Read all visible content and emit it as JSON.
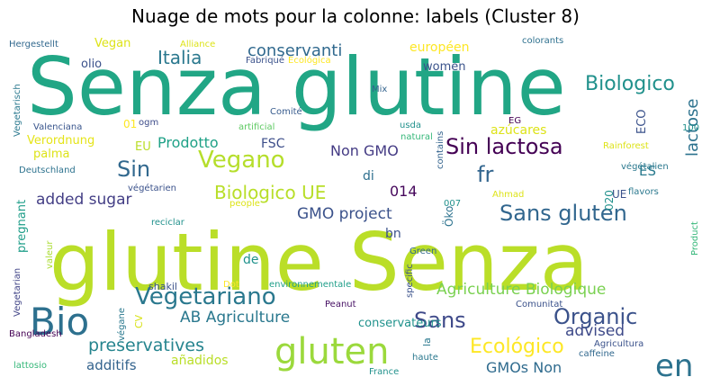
{
  "chart_data": {
    "type": "wordcloud",
    "title": "Nuage de mots pour la colonne: labels (Cluster 8)",
    "colormap": "viridis",
    "background": "#ffffff",
    "words": [
      {
        "text": "Senza glutine",
        "weight": 100,
        "color": "#21a685"
      },
      {
        "text": "glutine Senza",
        "weight": 98,
        "color": "#bade28"
      },
      {
        "text": "en",
        "weight": 34,
        "color": "#2c728e"
      },
      {
        "text": "Bio",
        "weight": 34,
        "color": "#2d708e"
      },
      {
        "text": "gluten",
        "weight": 32,
        "color": "#9bd93c"
      },
      {
        "text": "Sans gluten",
        "weight": 22,
        "color": "#31668e"
      },
      {
        "text": "Vegetariano",
        "weight": 22,
        "color": "#2a788e"
      },
      {
        "text": "Organic",
        "weight": 20,
        "color": "#3b528b"
      },
      {
        "text": "Vegano",
        "weight": 20,
        "color": "#b5de2b"
      },
      {
        "text": "Sin lactosa",
        "weight": 20,
        "color": "#440154"
      },
      {
        "text": "Sin",
        "weight": 20,
        "color": "#31688e"
      },
      {
        "text": "fr",
        "weight": 20,
        "color": "#32658e"
      },
      {
        "text": "Sans",
        "weight": 20,
        "color": "#3e4989"
      },
      {
        "text": "Biologico",
        "weight": 18,
        "color": "#21918c"
      },
      {
        "text": "Biologico UE",
        "weight": 18,
        "color": "#b8de29"
      },
      {
        "text": "Agriculture Biologique",
        "weight": 16,
        "color": "#7ad151"
      },
      {
        "text": "Ecológico",
        "weight": 18,
        "color": "#fde725"
      },
      {
        "text": "Italia",
        "weight": 17,
        "color": "#2a788e"
      },
      {
        "text": "conservanti",
        "weight": 16,
        "color": "#30698e"
      },
      {
        "text": "lactose",
        "weight": 15,
        "color": "#2c728e"
      },
      {
        "text": "preservatives",
        "weight": 16,
        "color": "#25848e"
      },
      {
        "text": "AB Agriculture",
        "weight": 15,
        "color": "#2a788e"
      },
      {
        "text": "advised",
        "weight": 15,
        "color": "#3e4a89"
      },
      {
        "text": "added sugar",
        "weight": 15,
        "color": "#433e85"
      },
      {
        "text": "GMO project",
        "weight": 14,
        "color": "#3b528b"
      },
      {
        "text": "Prodotto",
        "weight": 14,
        "color": "#1fa187"
      },
      {
        "text": "Non GMO",
        "weight": 14,
        "color": "#443b84"
      },
      {
        "text": "GMOs Non",
        "weight": 14,
        "color": "#2f6b8e"
      },
      {
        "text": "additifs",
        "weight": 13,
        "color": "#33638d"
      },
      {
        "text": "014",
        "weight": 13,
        "color": "#46085c"
      },
      {
        "text": "FSC",
        "weight": 12,
        "color": "#3d4e8a"
      },
      {
        "text": "ES",
        "weight": 12,
        "color": "#297a8e"
      },
      {
        "text": "conservateurs",
        "weight": 11,
        "color": "#20928c"
      },
      {
        "text": "Verordnung",
        "weight": 11,
        "color": "#e5e419"
      },
      {
        "text": "EU",
        "weight": 11,
        "color": "#bade28"
      },
      {
        "text": "européen",
        "weight": 11,
        "color": "#fde725"
      },
      {
        "text": "Vegan",
        "weight": 11,
        "color": "#dde318"
      },
      {
        "text": "olio",
        "weight": 11,
        "color": "#3b518b"
      },
      {
        "text": "palma",
        "weight": 11,
        "color": "#dde318"
      },
      {
        "text": "azúcares",
        "weight": 11,
        "color": "#dde318"
      },
      {
        "text": "añadidos",
        "weight": 11,
        "color": "#bade28"
      },
      {
        "text": "women",
        "weight": 11,
        "color": "#3a538b"
      },
      {
        "text": "ECO",
        "weight": 11,
        "color": "#3b528b"
      },
      {
        "text": "pregnant",
        "weight": 11,
        "color": "#1f9e89"
      },
      {
        "text": "de",
        "weight": 11,
        "color": "#20928c"
      },
      {
        "text": "di",
        "weight": 11,
        "color": "#2e6f8e"
      },
      {
        "text": "bn",
        "weight": 11,
        "color": "#3b528b"
      },
      {
        "text": "Öko",
        "weight": 10,
        "color": "#2c728e"
      },
      {
        "text": "UE",
        "weight": 10,
        "color": "#3b528b"
      },
      {
        "text": "020",
        "weight": 10,
        "color": "#21918c"
      },
      {
        "text": "01",
        "weight": 10,
        "color": "#fde725"
      },
      {
        "text": "la",
        "weight": 9,
        "color": "#2a788e"
      },
      {
        "text": "CV",
        "weight": 9,
        "color": "#d8e219"
      },
      {
        "text": "shakil",
        "weight": 9,
        "color": "#3b528b"
      },
      {
        "text": "Peanut",
        "weight": 8,
        "color": "#471164"
      },
      {
        "text": "environnementale",
        "weight": 8,
        "color": "#1f9e89"
      },
      {
        "text": "Dot",
        "weight": 8,
        "color": "#fde725"
      },
      {
        "text": "Valenciana",
        "weight": 8,
        "color": "#39558c"
      },
      {
        "text": "ogm",
        "weight": 8,
        "color": "#3e4c8a"
      },
      {
        "text": "usda",
        "weight": 8,
        "color": "#21918c"
      },
      {
        "text": "natural",
        "weight": 8,
        "color": "#35b779"
      },
      {
        "text": "artificial",
        "weight": 8,
        "color": "#5ec962"
      },
      {
        "text": "Comité",
        "weight": 8,
        "color": "#375b8d"
      },
      {
        "text": "Mix",
        "weight": 8,
        "color": "#33638d"
      },
      {
        "text": "colorants",
        "weight": 8,
        "color": "#2d708e"
      },
      {
        "text": "Hergestellt",
        "weight": 8,
        "color": "#31688e"
      },
      {
        "text": "Alliance",
        "weight": 8,
        "color": "#dde318"
      },
      {
        "text": "Fabriqué",
        "weight": 8,
        "color": "#3b528b"
      },
      {
        "text": "Ecológica",
        "weight": 8,
        "color": "#fde725"
      },
      {
        "text": "Vegetarisch",
        "weight": 8,
        "color": "#2a788e"
      },
      {
        "text": "Deutschland",
        "weight": 8,
        "color": "#2c728e"
      },
      {
        "text": "végétarien",
        "weight": 8,
        "color": "#3b528b"
      },
      {
        "text": "reciclar",
        "weight": 8,
        "color": "#21918c"
      },
      {
        "text": "people",
        "weight": 8,
        "color": "#dde318"
      },
      {
        "text": "valeur",
        "weight": 8,
        "color": "#aadc32"
      },
      {
        "text": "Vegetarian",
        "weight": 8,
        "color": "#414487"
      },
      {
        "text": "végane",
        "weight": 8,
        "color": "#2a788e"
      },
      {
        "text": "Bangladesh",
        "weight": 8,
        "color": "#440154"
      },
      {
        "text": "lattosio",
        "weight": 8,
        "color": "#35b779"
      },
      {
        "text": "France",
        "weight": 8,
        "color": "#21918c"
      },
      {
        "text": "haute",
        "weight": 8,
        "color": "#2a788e"
      },
      {
        "text": "caffeine",
        "weight": 8,
        "color": "#31688e"
      },
      {
        "text": "Agricultura",
        "weight": 8,
        "color": "#3b528b"
      },
      {
        "text": "Comunitat",
        "weight": 8,
        "color": "#3b528b"
      },
      {
        "text": "Green",
        "weight": 8,
        "color": "#31688e"
      },
      {
        "text": "specific",
        "weight": 8,
        "color": "#3b528b"
      },
      {
        "text": "contains",
        "weight": 8,
        "color": "#33638d"
      },
      {
        "text": "007",
        "weight": 8,
        "color": "#21918c"
      },
      {
        "text": "EG",
        "weight": 8,
        "color": "#440154"
      },
      {
        "text": "100",
        "weight": 8,
        "color": "#21918c"
      },
      {
        "text": "Rainforest",
        "weight": 8,
        "color": "#dde318"
      },
      {
        "text": "végétalien",
        "weight": 8,
        "color": "#2a788e"
      },
      {
        "text": "flavors",
        "weight": 8,
        "color": "#2a788e"
      },
      {
        "text": "Ahmad",
        "weight": 8,
        "color": "#dde318"
      },
      {
        "text": "Product",
        "weight": 8,
        "color": "#35b779"
      }
    ]
  }
}
